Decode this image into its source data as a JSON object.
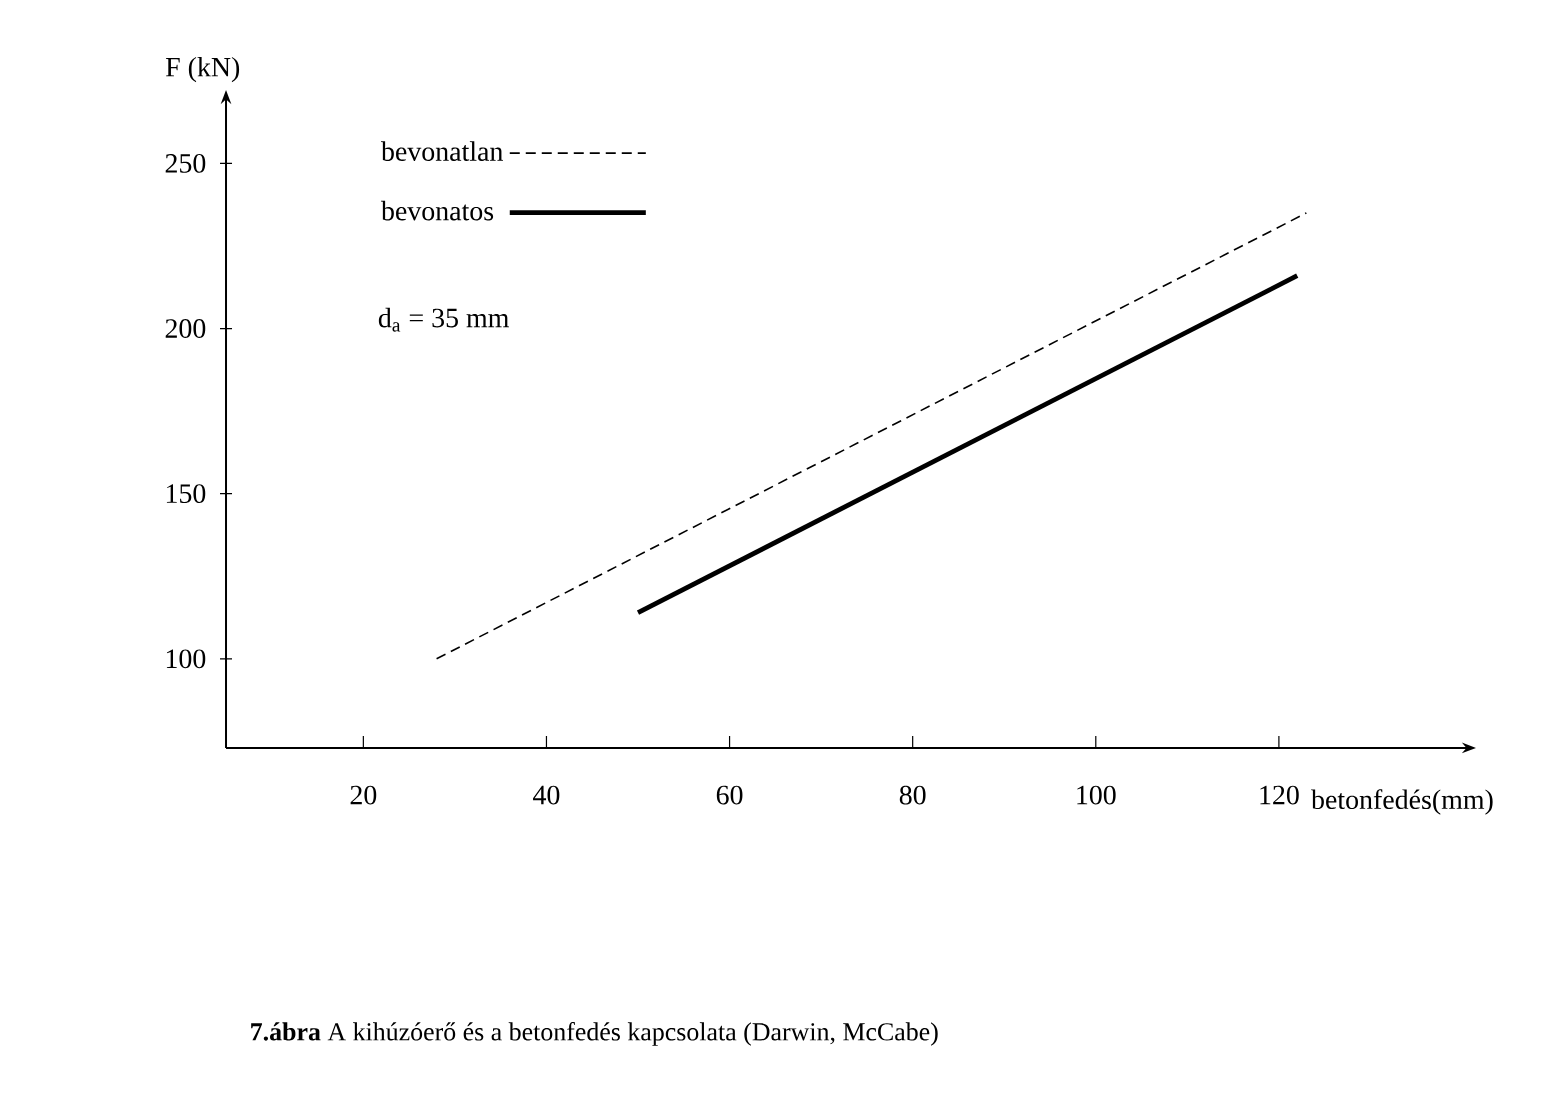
{
  "chart_data": {
    "type": "line",
    "xlabel": "betonfedés(mm)",
    "ylabel": "F (kN)",
    "xlim": [
      5,
      140
    ],
    "ylim": [
      73,
      268
    ],
    "xticks": [
      20,
      40,
      60,
      80,
      100,
      120
    ],
    "yticks": [
      100,
      150,
      200,
      250
    ],
    "series": [
      {
        "name": "bevonatlan",
        "color": "#000000",
        "line_style": "dashed",
        "x": [
          28,
          123
        ],
        "values": [
          100,
          235
        ]
      },
      {
        "name": "bevonatos",
        "color": "#000000",
        "line_style": "solid",
        "x": [
          50,
          122
        ],
        "values": [
          114,
          216
        ]
      }
    ],
    "legend": "top left",
    "grid": false,
    "marker": "none",
    "annotations": [
      "d$_{a}$ = 35 mm",
      "**7.ábra**   A kihúzóerő és a betonfedés kapcsolata (Darwin, McCabe)"
    ]
  }
}
